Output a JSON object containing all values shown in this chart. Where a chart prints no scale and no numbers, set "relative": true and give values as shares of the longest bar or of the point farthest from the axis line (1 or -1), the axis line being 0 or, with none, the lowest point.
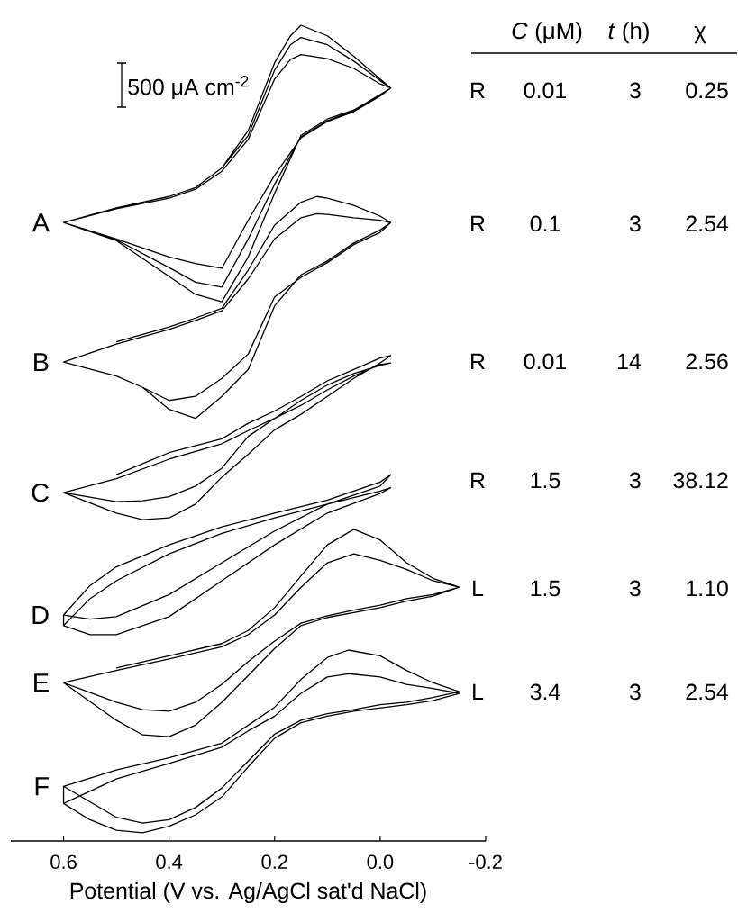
{
  "chart_data": {
    "type": "line",
    "relative": true,
    "xlabel": "Potential (V vs. Ag/AgCl sat'd NaCl)",
    "xlim": [
      0.7,
      -0.2
    ],
    "xticks": [
      0.6,
      0.4,
      0.2,
      {
        "value": 0.0,
        "label": "0.0"
      },
      -0.2
    ],
    "annotations": [
      "500 μA cm$^{-2}$",
      "*C* (μM)",
      "*t* (h)",
      "χ",
      "R",
      "0.01",
      "3",
      "0.25",
      "R",
      "0.1",
      "3",
      "2.54",
      "R",
      "0.01",
      "14",
      "2.56",
      "R",
      "1.5",
      "3",
      "38.12",
      "L",
      "1.5",
      "3",
      "1.10",
      "L",
      "3.4",
      "3",
      "2.54"
    ],
    "series": [
      {
        "name": "A",
        "color": "#000000",
        "x": [
          0.5,
          0.4,
          0.35,
          0.3,
          0.25,
          0.2,
          0.17,
          0.15,
          0.1,
          0.05,
          0.0,
          -0.02,
          0.0,
          0.05,
          0.1,
          0.15,
          0.2,
          0.25,
          0.3,
          0.35,
          0.4,
          0.5,
          0.6,
          0.5,
          0.4,
          0.35,
          0.3,
          0.25,
          0.2,
          0.17,
          0.15,
          0.1,
          0.05,
          0.0,
          -0.02,
          0.0,
          0.05,
          0.1,
          0.15,
          0.2,
          0.25,
          0.3,
          0.35,
          0.4,
          0.5,
          0.6,
          0.5,
          0.4,
          0.35,
          0.3,
          0.25,
          0.2,
          0.17,
          0.15,
          0.1,
          0.05,
          0.0,
          -0.02,
          0.0,
          0.05,
          0.1,
          0.15,
          0.2,
          0.25,
          0.3,
          0.35,
          0.4,
          0.5,
          0.6
        ],
        "values": [
          0.776,
          0.79,
          0.801,
          0.825,
          0.871,
          0.954,
          0.987,
          1.0,
          0.987,
          0.962,
          0.934,
          0.923,
          0.915,
          0.896,
          0.885,
          0.865,
          0.794,
          0.716,
          0.661,
          0.67,
          0.692,
          0.736,
          0.758,
          0.776,
          0.79,
          0.801,
          0.825,
          0.865,
          0.945,
          0.976,
          0.985,
          0.976,
          0.956,
          0.932,
          0.923,
          0.914,
          0.895,
          0.883,
          0.863,
          0.805,
          0.738,
          0.679,
          0.685,
          0.703,
          0.737,
          0.758,
          0.775,
          0.788,
          0.799,
          0.821,
          0.86,
          0.934,
          0.958,
          0.964,
          0.959,
          0.947,
          0.928,
          0.923,
          0.913,
          0.894,
          0.882,
          0.862,
          0.816,
          0.761,
          0.702,
          0.708,
          0.716,
          0.738,
          0.758
        ]
      },
      {
        "name": "B",
        "color": "#000000",
        "x": [
          0.5,
          0.4,
          0.35,
          0.3,
          0.25,
          0.2,
          0.15,
          0.12,
          0.1,
          0.05,
          0.0,
          -0.02,
          0.0,
          0.05,
          0.1,
          0.15,
          0.2,
          0.25,
          0.3,
          0.35,
          0.4,
          0.45,
          0.5,
          0.6,
          0.5,
          0.4,
          0.35,
          0.3,
          0.25,
          0.2,
          0.15,
          0.12,
          0.1,
          0.05,
          0.0,
          -0.02,
          0.0,
          0.05,
          0.1,
          0.15,
          0.2,
          0.25,
          0.3,
          0.35,
          0.4,
          0.45,
          0.5,
          0.6
        ],
        "values": [
          0.612,
          0.63,
          0.641,
          0.653,
          0.7,
          0.755,
          0.783,
          0.79,
          0.788,
          0.779,
          0.766,
          0.758,
          0.749,
          0.733,
          0.711,
          0.694,
          0.656,
          0.578,
          0.545,
          0.518,
          0.529,
          0.556,
          0.57,
          0.587,
          0.609,
          0.627,
          0.638,
          0.65,
          0.689,
          0.738,
          0.764,
          0.769,
          0.768,
          0.764,
          0.761,
          0.758,
          0.746,
          0.731,
          0.709,
          0.691,
          0.667,
          0.597,
          0.567,
          0.545,
          0.54,
          0.556,
          0.57,
          0.587
        ]
      },
      {
        "name": "C",
        "color": "#000000",
        "x": [
          0.5,
          0.4,
          0.3,
          0.25,
          0.2,
          0.15,
          0.1,
          0.05,
          0.0,
          -0.02,
          0.0,
          0.05,
          0.1,
          0.15,
          0.2,
          0.25,
          0.3,
          0.35,
          0.4,
          0.45,
          0.5,
          0.6,
          0.5,
          0.4,
          0.3,
          0.25,
          0.2,
          0.15,
          0.1,
          0.05,
          0.0,
          -0.02,
          0.0,
          0.05,
          0.1,
          0.15,
          0.2,
          0.25,
          0.3,
          0.35,
          0.4,
          0.45,
          0.5,
          0.6
        ],
        "values": [
          0.449,
          0.476,
          0.493,
          0.512,
          0.527,
          0.545,
          0.564,
          0.578,
          0.592,
          0.595,
          0.586,
          0.567,
          0.545,
          0.523,
          0.504,
          0.474,
          0.446,
          0.413,
          0.396,
          0.394,
          0.402,
          0.427,
          0.444,
          0.468,
          0.487,
          0.503,
          0.518,
          0.534,
          0.553,
          0.57,
          0.584,
          0.586,
          0.583,
          0.573,
          0.559,
          0.54,
          0.518,
          0.496,
          0.457,
          0.435,
          0.422,
          0.417,
          0.416,
          0.427
        ]
      },
      {
        "name": "D",
        "color": "#000000",
        "x": [
          0.6,
          0.55,
          0.5,
          0.4,
          0.3,
          0.2,
          0.1,
          0.0,
          -0.02,
          0.0,
          0.1,
          0.2,
          0.3,
          0.4,
          0.5,
          0.55,
          0.6,
          0.6,
          0.55,
          0.5,
          0.4,
          0.3,
          0.2,
          0.1,
          0.0,
          -0.02,
          0.0,
          0.1,
          0.2,
          0.3,
          0.4,
          0.5,
          0.55,
          0.6
        ],
        "values": [
          0.277,
          0.313,
          0.336,
          0.363,
          0.385,
          0.402,
          0.418,
          0.44,
          0.449,
          0.435,
          0.413,
          0.38,
          0.341,
          0.302,
          0.275,
          0.272,
          0.277,
          0.264,
          0.297,
          0.319,
          0.352,
          0.377,
          0.396,
          0.413,
          0.429,
          0.433,
          0.426,
          0.402,
          0.363,
          0.319,
          0.275,
          0.253,
          0.253,
          0.264
        ]
      },
      {
        "name": "E",
        "color": "#000000",
        "x": [
          0.5,
          0.4,
          0.3,
          0.25,
          0.2,
          0.15,
          0.1,
          0.05,
          0.0,
          -0.05,
          -0.1,
          -0.15,
          -0.1,
          -0.05,
          0.0,
          0.05,
          0.1,
          0.15,
          0.2,
          0.25,
          0.3,
          0.35,
          0.4,
          0.45,
          0.5,
          0.6,
          0.5,
          0.4,
          0.3,
          0.25,
          0.2,
          0.15,
          0.1,
          0.05,
          0.0,
          -0.05,
          -0.1,
          -0.15,
          -0.1,
          -0.05,
          0.0,
          0.05,
          0.1,
          0.15,
          0.2,
          0.25,
          0.3,
          0.35,
          0.4,
          0.45,
          0.5,
          0.6
        ],
        "values": [
          0.212,
          0.227,
          0.242,
          0.258,
          0.286,
          0.325,
          0.363,
          0.382,
          0.369,
          0.341,
          0.322,
          0.311,
          0.3,
          0.294,
          0.286,
          0.28,
          0.274,
          0.264,
          0.236,
          0.2029,
          0.17,
          0.142,
          0.128,
          0.13,
          0.148,
          0.194,
          0.209,
          0.223,
          0.238,
          0.253,
          0.277,
          0.311,
          0.341,
          0.352,
          0.344,
          0.333,
          0.319,
          0.311,
          0.302,
          0.297,
          0.289,
          0.283,
          0.276,
          0.267,
          0.245,
          0.22,
          0.192,
          0.17,
          0.159,
          0.161,
          0.17,
          0.194
        ]
      },
      {
        "name": "F",
        "color": "#000000",
        "x": [
          0.6,
          0.5,
          0.4,
          0.3,
          0.25,
          0.2,
          0.15,
          0.1,
          0.06,
          0.0,
          -0.05,
          -0.1,
          -0.15,
          -0.1,
          -0.05,
          0.0,
          0.05,
          0.1,
          0.15,
          0.2,
          0.25,
          0.3,
          0.35,
          0.4,
          0.45,
          0.5,
          0.6,
          0.6,
          0.5,
          0.4,
          0.3,
          0.25,
          0.2,
          0.15,
          0.1,
          0.06,
          0.0,
          -0.05,
          -0.1,
          -0.15,
          -0.1,
          -0.05,
          0.0,
          0.05,
          0.1,
          0.15,
          0.2,
          0.25,
          0.3,
          0.35,
          0.4,
          0.45,
          0.5,
          0.55,
          0.6
        ],
        "values": [
          0.067,
          0.087,
          0.102,
          0.12,
          0.142,
          0.164,
          0.198,
          0.225,
          0.234,
          0.227,
          0.209,
          0.194,
          0.183,
          0.176,
          0.17,
          0.167,
          0.161,
          0.156,
          0.148,
          0.131,
          0.0979,
          0.065,
          0.041,
          0.026,
          0.022,
          0.029,
          0.067,
          0.046,
          0.076,
          0.095,
          0.115,
          0.135,
          0.153,
          0.181,
          0.201,
          0.205,
          0.201,
          0.192,
          0.187,
          0.181,
          0.172,
          0.167,
          0.163,
          0.159,
          0.153,
          0.145,
          0.126,
          0.091,
          0.054,
          0.032,
          0.018,
          0.01,
          0.013,
          0.026,
          0.046
        ]
      }
    ]
  }
}
